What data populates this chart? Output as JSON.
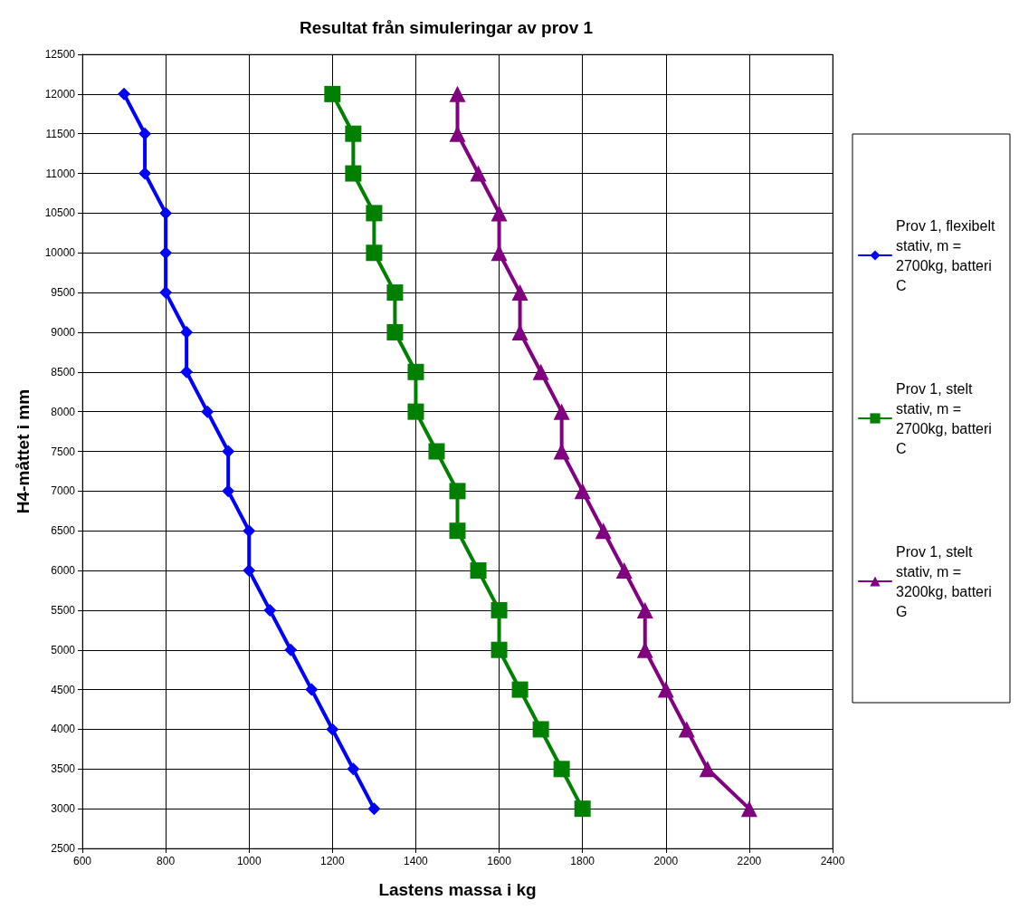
{
  "chart_data": {
    "type": "line",
    "title": "Resultat från simuleringar av prov 1",
    "xlabel": "Lastens massa i kg",
    "ylabel": "H4-måttet i mm",
    "xlim": [
      600,
      2400
    ],
    "xticks": [
      600,
      800,
      1000,
      1200,
      1400,
      1600,
      1800,
      2000,
      2200,
      2400
    ],
    "ylim": [
      2500,
      12500
    ],
    "yticks": [
      2500,
      3000,
      3500,
      4000,
      4500,
      5000,
      5500,
      6000,
      6500,
      7000,
      7500,
      8000,
      8500,
      9000,
      9500,
      10000,
      10500,
      11000,
      11500,
      12000,
      12500
    ],
    "grid": true,
    "legend": "right",
    "line_style": "solid",
    "series": [
      {
        "name": "Prov 1, flexibelt stativ, m = 2700kg, batteri C",
        "color": "#0000ff",
        "marker": "diamond",
        "x": [
          700,
          750,
          750,
          800,
          800,
          800,
          850,
          850,
          900,
          950,
          950,
          1000,
          1000,
          1050,
          1100,
          1150,
          1200,
          1250,
          1300
        ],
        "values": [
          12000,
          11500,
          11000,
          10500,
          10000,
          9500,
          9000,
          8500,
          8000,
          7500,
          7000,
          6500,
          6000,
          5500,
          5000,
          4500,
          4000,
          3500,
          3000
        ]
      },
      {
        "name": "Prov 1, stelt stativ, m = 2700kg, batteri C",
        "color": "#008000",
        "marker": "square",
        "x": [
          1200,
          1250,
          1250,
          1300,
          1300,
          1350,
          1350,
          1400,
          1400,
          1450,
          1500,
          1500,
          1550,
          1600,
          1600,
          1650,
          1700,
          1750,
          1800
        ],
        "values": [
          12000,
          11500,
          11000,
          10500,
          10000,
          9500,
          9000,
          8500,
          8000,
          7500,
          7000,
          6500,
          6000,
          5500,
          5000,
          4500,
          4000,
          3500,
          3000
        ]
      },
      {
        "name": "Prov 1, stelt stativ, m = 3200kg, batteri G",
        "color": "#800080",
        "marker": "triangle",
        "x": [
          1500,
          1500,
          1550,
          1600,
          1600,
          1650,
          1650,
          1700,
          1750,
          1750,
          1800,
          1850,
          1900,
          1950,
          1950,
          2000,
          2050,
          2100,
          2200
        ],
        "values": [
          12000,
          11500,
          11000,
          10500,
          10000,
          9500,
          9000,
          8500,
          8000,
          7500,
          7000,
          6500,
          6000,
          5500,
          5000,
          4500,
          4000,
          3500,
          3000
        ]
      }
    ]
  }
}
